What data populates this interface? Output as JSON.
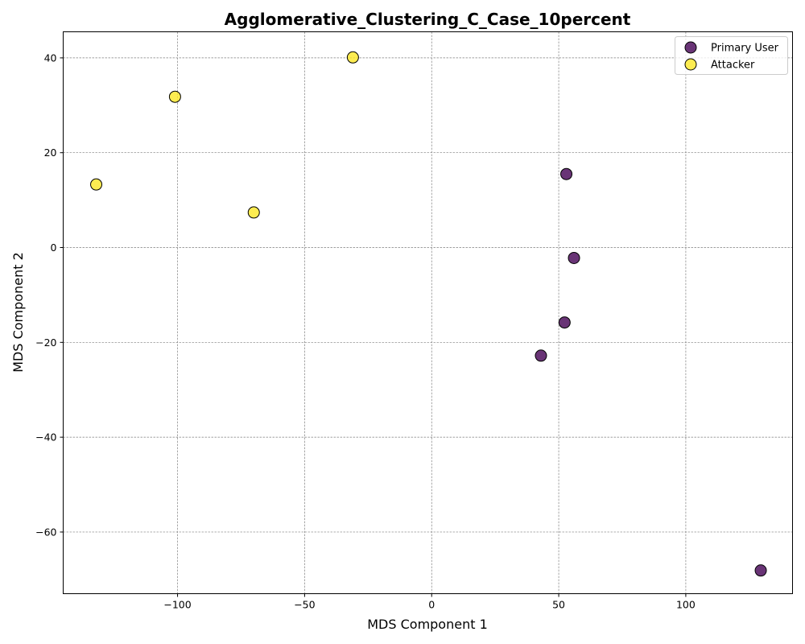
{
  "chart_data": {
    "type": "scatter",
    "title": "Agglomerative_Clustering_C_Case_10percent",
    "xlabel": "MDS Component 1",
    "ylabel": "MDS Component 2",
    "xlim": [
      -145,
      142
    ],
    "ylim": [
      -73,
      45.5
    ],
    "xticks": [
      -100,
      -50,
      0,
      50,
      100
    ],
    "yticks": [
      -60,
      -40,
      -20,
      0,
      20,
      40
    ],
    "xtick_labels": [
      "−100",
      "−50",
      "0",
      "50",
      "100"
    ],
    "ytick_labels": [
      "−60",
      "−40",
      "−20",
      "0",
      "20",
      "40"
    ],
    "grid": true,
    "legend_position": "top-right",
    "series": [
      {
        "name": "Primary User",
        "color": "#440154",
        "points": [
          {
            "x": 53,
            "y": 15.5
          },
          {
            "x": 56,
            "y": -2.2
          },
          {
            "x": 52.3,
            "y": -15.8
          },
          {
            "x": 43,
            "y": -22.8
          },
          {
            "x": 129.5,
            "y": -68.1
          }
        ]
      },
      {
        "name": "Attacker",
        "color": "#fde725",
        "points": [
          {
            "x": -31,
            "y": 40.1
          },
          {
            "x": -101,
            "y": 31.8
          },
          {
            "x": -132,
            "y": 13.3
          },
          {
            "x": -70,
            "y": 7.4
          }
        ]
      }
    ]
  }
}
